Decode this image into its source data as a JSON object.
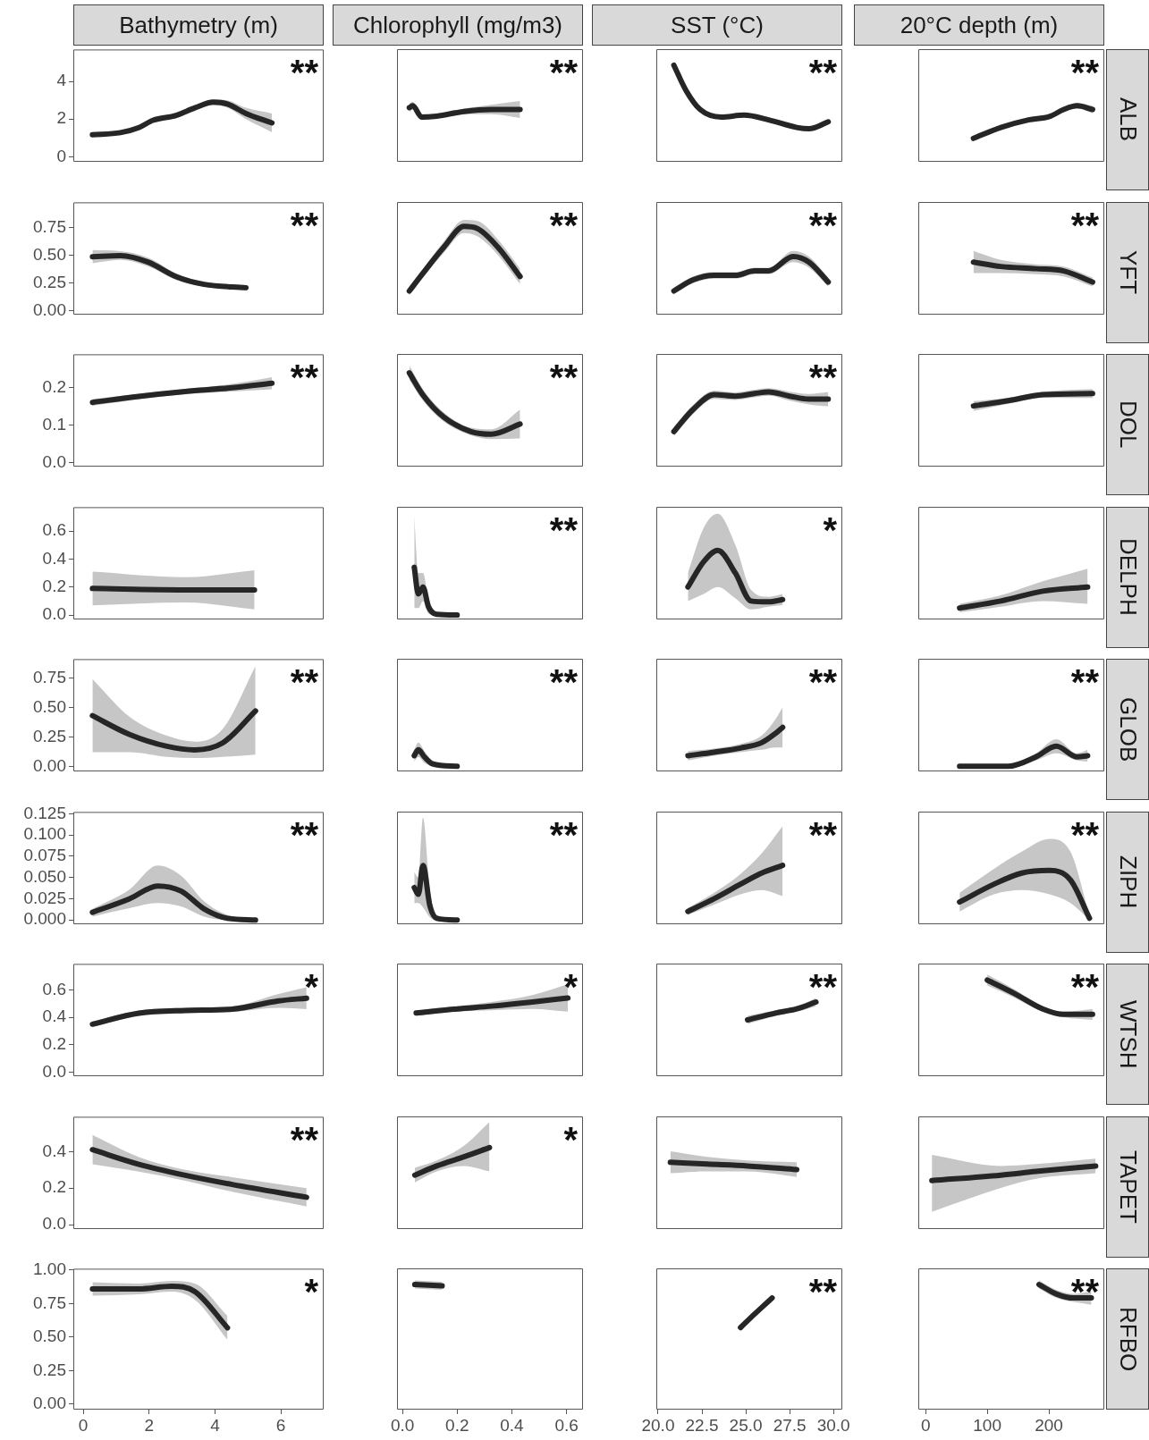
{
  "chart_data": [
    {
      "type": "line",
      "title": "Bathymetry (m)",
      "x": [
        0.28,
        1.13,
        1.69,
        2.12,
        2.82,
        3.39,
        3.95,
        4.38,
        4.94,
        5.73
      ],
      "series": [
        {
          "color": "#262626",
          "values": [
            1.17,
            1.28,
            1.55,
            1.94,
            2.2,
            2.6,
            2.9,
            2.8,
            2.3,
            1.8
          ],
          "lower": [
            1.07,
            1.18,
            1.45,
            1.84,
            2.1,
            2.5,
            2.75,
            2.6,
            2.0,
            1.3
          ],
          "upper": [
            1.27,
            1.38,
            1.65,
            2.04,
            2.3,
            2.7,
            3.05,
            3.0,
            2.6,
            2.3
          ]
        }
      ],
      "xlim": [
        -0.3,
        7.3
      ],
      "xticks": [
        0,
        2,
        4,
        6
      ],
      "ylim": [
        -0.27,
        5.7
      ],
      "yticks": [
        0,
        2,
        4
      ],
      "tick_labels": "y",
      "annotations": [
        "**"
      ]
    },
    {
      "type": "line",
      "title": "Chlorophyll (mg/m3)",
      "x": [
        0.025,
        0.0375,
        0.07,
        0.125,
        0.225,
        0.325,
        0.43
      ],
      "series": [
        {
          "color": "#262626",
          "values": [
            2.6,
            2.7,
            2.1,
            2.15,
            2.4,
            2.5,
            2.5
          ],
          "lower": [
            2.35,
            2.5,
            1.95,
            2.05,
            2.25,
            2.25,
            2.05
          ],
          "upper": [
            2.85,
            2.9,
            2.25,
            2.25,
            2.55,
            2.75,
            2.95
          ]
        }
      ],
      "xlim": [
        -0.02,
        0.66
      ],
      "xticks": [
        0,
        0.2,
        0.4,
        0.6
      ],
      "ylim": [
        -0.27,
        5.7
      ],
      "yticks": [
        0,
        2,
        4
      ],
      "tick_labels": false,
      "annotations": [
        "**"
      ]
    },
    {
      "type": "line",
      "title": "SST (°C)",
      "x": [
        20.9,
        21.6,
        22.4,
        23.6,
        24.9,
        26.3,
        27.9,
        28.6,
        29.7
      ],
      "series": [
        {
          "color": "#262626",
          "values": [
            4.85,
            3.5,
            2.5,
            2.1,
            2.2,
            1.95,
            1.55,
            1.48,
            1.85
          ],
          "lower": [
            4.7,
            3.4,
            2.4,
            2.0,
            2.1,
            1.85,
            1.45,
            1.38,
            1.7
          ],
          "upper": [
            5.0,
            3.6,
            2.6,
            2.2,
            2.3,
            2.05,
            1.65,
            1.58,
            2.0
          ]
        }
      ],
      "xlim": [
        19.9,
        30.5
      ],
      "xticks": [
        20,
        22.5,
        25,
        27.5,
        30
      ],
      "ylim": [
        -0.27,
        5.7
      ],
      "yticks": [
        0,
        2,
        4
      ],
      "tick_labels": false,
      "annotations": [
        "**"
      ]
    },
    {
      "type": "line",
      "title": "20°C depth (m)",
      "subtitle": "ALB",
      "x": [
        77.5,
        122,
        167,
        201,
        224,
        246,
        271
      ],
      "series": [
        {
          "color": "#262626",
          "values": [
            0.97,
            1.55,
            1.95,
            2.13,
            2.5,
            2.7,
            2.5
          ],
          "lower": [
            0.87,
            1.45,
            1.85,
            2.03,
            2.4,
            2.55,
            2.3
          ],
          "upper": [
            1.07,
            1.65,
            2.05,
            2.23,
            2.6,
            2.85,
            2.7
          ]
        }
      ],
      "xlim": [
        -12,
        290
      ],
      "xticks": [
        0,
        100,
        200
      ],
      "ylim": [
        -0.27,
        5.7
      ],
      "yticks": [
        0,
        2,
        4
      ],
      "tick_labels": false,
      "annotations": [
        "**"
      ]
    },
    {
      "type": "line",
      "x": [
        0.28,
        1.13,
        1.98,
        2.82,
        3.67,
        4.94
      ],
      "series": [
        {
          "color": "#262626",
          "values": [
            0.49,
            0.5,
            0.44,
            0.31,
            0.24,
            0.21
          ],
          "lower": [
            0.43,
            0.46,
            0.4,
            0.28,
            0.22,
            0.19
          ],
          "upper": [
            0.55,
            0.54,
            0.48,
            0.34,
            0.26,
            0.23
          ]
        }
      ],
      "xlim": [
        -0.3,
        7.3
      ],
      "xticks": [
        0,
        2,
        4,
        6
      ],
      "ylim": [
        -0.033,
        0.98
      ],
      "yticks": [
        {
          "value": 0,
          "label": "0.00"
        },
        0.25,
        {
          "value": 0.5,
          "label": "0.50"
        },
        0.75
      ],
      "tick_labels": "y",
      "annotations": [
        "**"
      ]
    },
    {
      "type": "line",
      "x": [
        0.025,
        0.075,
        0.15,
        0.225,
        0.275,
        0.35,
        0.43
      ],
      "series": [
        {
          "color": "#262626",
          "values": [
            0.18,
            0.34,
            0.57,
            0.76,
            0.74,
            0.57,
            0.31
          ],
          "lower": [
            0.14,
            0.3,
            0.52,
            0.7,
            0.67,
            0.5,
            0.24
          ],
          "upper": [
            0.22,
            0.38,
            0.62,
            0.82,
            0.81,
            0.64,
            0.38
          ]
        }
      ],
      "xlim": [
        -0.02,
        0.66
      ],
      "xticks": [
        0,
        0.2,
        0.4,
        0.6
      ],
      "ylim": [
        -0.033,
        0.98
      ],
      "yticks": [
        0,
        0.25,
        0.5,
        0.75
      ],
      "tick_labels": false,
      "annotations": [
        "**"
      ]
    },
    {
      "type": "line",
      "x": [
        20.9,
        22.0,
        23.2,
        24.4,
        25.5,
        26.3,
        27.7,
        28.6,
        29.7
      ],
      "series": [
        {
          "color": "#262626",
          "values": [
            0.18,
            0.28,
            0.32,
            0.32,
            0.36,
            0.36,
            0.49,
            0.44,
            0.26
          ],
          "lower": [
            0.15,
            0.25,
            0.29,
            0.29,
            0.33,
            0.33,
            0.44,
            0.39,
            0.22
          ],
          "upper": [
            0.21,
            0.31,
            0.35,
            0.35,
            0.39,
            0.39,
            0.54,
            0.49,
            0.3
          ]
        }
      ],
      "xlim": [
        19.9,
        30.5
      ],
      "xticks": [
        20,
        22.5,
        25,
        27.5,
        30
      ],
      "ylim": [
        -0.033,
        0.98
      ],
      "yticks": [
        0,
        0.25,
        0.5,
        0.75
      ],
      "tick_labels": false,
      "annotations": [
        "**"
      ]
    },
    {
      "type": "line",
      "subtitle": "YFT",
      "x": [
        77.5,
        122,
        179,
        224,
        271
      ],
      "series": [
        {
          "color": "#262626",
          "values": [
            0.44,
            0.4,
            0.38,
            0.36,
            0.26
          ],
          "lower": [
            0.34,
            0.34,
            0.33,
            0.31,
            0.22
          ],
          "upper": [
            0.54,
            0.46,
            0.42,
            0.4,
            0.3
          ]
        }
      ],
      "xlim": [
        -12,
        290
      ],
      "xticks": [
        0,
        100,
        200
      ],
      "ylim": [
        -0.033,
        0.98
      ],
      "yticks": [
        0,
        0.25,
        0.5,
        0.75
      ],
      "tick_labels": false,
      "annotations": [
        "**"
      ]
    },
    {
      "type": "line",
      "x": [
        0.28,
        1.69,
        3.1,
        4.52,
        5.73
      ],
      "series": [
        {
          "color": "#262626",
          "values": [
            0.161,
            0.177,
            0.19,
            0.2,
            0.212
          ],
          "lower": [
            0.152,
            0.17,
            0.183,
            0.19,
            0.196
          ],
          "upper": [
            0.17,
            0.184,
            0.197,
            0.21,
            0.228
          ]
        }
      ],
      "xlim": [
        -0.3,
        7.3
      ],
      "xticks": [
        0,
        2,
        4,
        6
      ],
      "ylim": [
        -0.01,
        0.289
      ],
      "yticks": [
        {
          "value": 0,
          "label": "0.0"
        },
        0.1,
        0.2
      ],
      "tick_labels": "y",
      "annotations": [
        "**"
      ]
    },
    {
      "type": "line",
      "x": [
        0.025,
        0.075,
        0.15,
        0.25,
        0.325,
        0.43
      ],
      "series": [
        {
          "color": "#262626",
          "values": [
            0.239,
            0.18,
            0.122,
            0.083,
            0.076,
            0.103
          ],
          "lower": [
            0.22,
            0.165,
            0.11,
            0.073,
            0.063,
            0.065
          ],
          "upper": [
            0.258,
            0.195,
            0.134,
            0.093,
            0.089,
            0.141
          ]
        }
      ],
      "xlim": [
        -0.02,
        0.66
      ],
      "xticks": [
        0,
        0.2,
        0.4,
        0.6
      ],
      "ylim": [
        -0.01,
        0.289
      ],
      "yticks": [
        0,
        0.1,
        0.2
      ],
      "tick_labels": false,
      "annotations": [
        "**"
      ]
    },
    {
      "type": "line",
      "x": [
        20.9,
        22.0,
        23.2,
        24.4,
        25.5,
        26.3,
        27.5,
        28.6,
        29.7
      ],
      "series": [
        {
          "color": "#262626",
          "values": [
            0.083,
            0.142,
            0.181,
            0.177,
            0.184,
            0.188,
            0.177,
            0.169,
            0.169
          ],
          "lower": [
            0.07,
            0.13,
            0.17,
            0.167,
            0.174,
            0.178,
            0.165,
            0.155,
            0.15
          ],
          "upper": [
            0.096,
            0.154,
            0.192,
            0.187,
            0.194,
            0.198,
            0.189,
            0.183,
            0.188
          ]
        }
      ],
      "xlim": [
        19.9,
        30.5
      ],
      "xticks": [
        20,
        22.5,
        25,
        27.5,
        30
      ],
      "ylim": [
        -0.01,
        0.289
      ],
      "yticks": [
        0,
        0.1,
        0.2
      ],
      "tick_labels": false,
      "annotations": [
        "**"
      ]
    },
    {
      "type": "line",
      "subtitle": "DOL",
      "x": [
        77.5,
        134,
        190,
        271
      ],
      "series": [
        {
          "color": "#262626",
          "values": [
            0.151,
            0.165,
            0.181,
            0.184
          ],
          "lower": [
            0.138,
            0.157,
            0.173,
            0.172
          ],
          "upper": [
            0.164,
            0.173,
            0.189,
            0.196
          ]
        }
      ],
      "xlim": [
        -12,
        290
      ],
      "xticks": [
        0,
        100,
        200
      ],
      "ylim": [
        -0.01,
        0.289
      ],
      "yticks": [
        0,
        0.1,
        0.2
      ],
      "tick_labels": false
    },
    {
      "type": "line",
      "x": [
        0.28,
        3.1,
        5.2
      ],
      "series": [
        {
          "color": "#262626",
          "values": [
            0.19,
            0.18,
            0.18
          ],
          "lower": [
            0.07,
            0.09,
            0.04
          ],
          "upper": [
            0.31,
            0.27,
            0.32
          ]
        }
      ],
      "xlim": [
        -0.3,
        7.3
      ],
      "xticks": [
        0,
        2,
        4,
        6
      ],
      "ylim": [
        -0.031,
        0.77
      ],
      "yticks": [
        {
          "value": 0,
          "label": "0.0"
        },
        0.2,
        0.4,
        0.6
      ],
      "tick_labels": "y"
    },
    {
      "type": "line",
      "x": [
        0.043,
        0.058,
        0.075,
        0.095,
        0.125,
        0.2
      ],
      "series": [
        {
          "color": "#262626",
          "values": [
            0.34,
            0.15,
            0.2,
            0.06,
            0.005,
            0
          ],
          "lower": [
            0.05,
            0.05,
            0.1,
            0.01,
            0,
            0
          ],
          "upper": [
            0.7,
            0.3,
            0.3,
            0.12,
            0.02,
            0.005
          ]
        }
      ],
      "xlim": [
        -0.02,
        0.66
      ],
      "xticks": [
        0,
        0.2,
        0.4,
        0.6
      ],
      "ylim": [
        -0.031,
        0.77
      ],
      "yticks": [
        0,
        0.2,
        0.4,
        0.6
      ],
      "tick_labels": false,
      "annotations": [
        "**"
      ]
    },
    {
      "type": "line",
      "x": [
        21.7,
        22.6,
        23.4,
        24.4,
        25.3,
        26.3,
        27.1
      ],
      "series": [
        {
          "color": "#262626",
          "values": [
            0.2,
            0.38,
            0.46,
            0.3,
            0.1,
            0.094,
            0.11
          ],
          "lower": [
            0.1,
            0.15,
            0.2,
            0.12,
            0.04,
            0.06,
            0.07
          ],
          "upper": [
            0.3,
            0.62,
            0.72,
            0.5,
            0.18,
            0.13,
            0.15
          ]
        }
      ],
      "xlim": [
        19.9,
        30.5
      ],
      "xticks": [
        20,
        22.5,
        25,
        27.5,
        30
      ],
      "ylim": [
        -0.031,
        0.77
      ],
      "yticks": [
        0,
        0.2,
        0.4,
        0.6
      ],
      "tick_labels": false,
      "annotations": [
        "*"
      ]
    },
    {
      "type": "line",
      "subtitle": "DELPH",
      "x": [
        55,
        122,
        190,
        263
      ],
      "series": [
        {
          "color": "#262626",
          "values": [
            0.05,
            0.1,
            0.17,
            0.2
          ],
          "lower": [
            0.02,
            0.06,
            0.1,
            0.08
          ],
          "upper": [
            0.08,
            0.14,
            0.24,
            0.33
          ]
        }
      ],
      "xlim": [
        -12,
        290
      ],
      "xticks": [
        0,
        100,
        200
      ],
      "ylim": [
        -0.031,
        0.77
      ],
      "yticks": [
        0,
        0.2,
        0.4,
        0.6
      ],
      "tick_labels": false
    },
    {
      "type": "line",
      "x": [
        0.28,
        1.41,
        2.54,
        3.39,
        4.24,
        5.23
      ],
      "series": [
        {
          "color": "#262626",
          "values": [
            0.43,
            0.27,
            0.17,
            0.14,
            0.2,
            0.47
          ],
          "lower": [
            0.12,
            0.12,
            0.08,
            0.07,
            0.08,
            0.1
          ],
          "upper": [
            0.74,
            0.42,
            0.26,
            0.21,
            0.32,
            0.85
          ]
        }
      ],
      "xlim": [
        -0.3,
        7.3
      ],
      "xticks": [
        0,
        2,
        4,
        6
      ],
      "ylim": [
        -0.043,
        0.91
      ],
      "yticks": [
        {
          "value": 0,
          "label": "0.00"
        },
        0.25,
        {
          "value": 0.5,
          "label": "0.50"
        },
        0.75
      ],
      "tick_labels": "y",
      "annotations": [
        "**"
      ]
    },
    {
      "type": "line",
      "x": [
        0.043,
        0.058,
        0.08,
        0.11,
        0.2
      ],
      "series": [
        {
          "color": "#262626",
          "values": [
            0.09,
            0.14,
            0.08,
            0.02,
            0
          ],
          "lower": [
            0.04,
            0.08,
            0.03,
            0,
            0
          ],
          "upper": [
            0.14,
            0.2,
            0.13,
            0.05,
            0.01
          ]
        }
      ],
      "xlim": [
        -0.02,
        0.66
      ],
      "xticks": [
        0,
        0.2,
        0.4,
        0.6
      ],
      "ylim": [
        -0.043,
        0.91
      ],
      "yticks": [
        0,
        0.25,
        0.5,
        0.75
      ],
      "tick_labels": false,
      "annotations": [
        "**"
      ]
    },
    {
      "type": "line",
      "x": [
        21.7,
        23.2,
        24.7,
        25.9,
        26.7,
        27.1
      ],
      "series": [
        {
          "color": "#262626",
          "values": [
            0.09,
            0.12,
            0.155,
            0.2,
            0.28,
            0.33
          ],
          "lower": [
            0.05,
            0.09,
            0.12,
            0.14,
            0.16,
            0.16
          ],
          "upper": [
            0.13,
            0.15,
            0.19,
            0.26,
            0.4,
            0.5
          ]
        }
      ],
      "xlim": [
        19.9,
        30.5
      ],
      "xticks": [
        20,
        22.5,
        25,
        27.5,
        30
      ],
      "ylim": [
        -0.043,
        0.91
      ],
      "yticks": [
        0,
        0.25,
        0.5,
        0.75
      ],
      "tick_labels": false,
      "annotations": [
        "**"
      ]
    },
    {
      "type": "line",
      "subtitle": "GLOB",
      "x": [
        55,
        134,
        179,
        212,
        246,
        263
      ],
      "series": [
        {
          "color": "#262626",
          "values": [
            0,
            0,
            0.08,
            0.17,
            0.08,
            0.09
          ],
          "lower": [
            0,
            0,
            0.05,
            0.11,
            0.05,
            0.04
          ],
          "upper": [
            0.01,
            0.01,
            0.11,
            0.23,
            0.11,
            0.14
          ]
        }
      ],
      "xlim": [
        -12,
        290
      ],
      "xticks": [
        0,
        100,
        200
      ],
      "ylim": [
        -0.043,
        0.91
      ],
      "yticks": [
        0,
        0.25,
        0.5,
        0.75
      ],
      "tick_labels": false,
      "annotations": [
        "**"
      ]
    },
    {
      "type": "line",
      "x": [
        0.28,
        1.41,
        2.26,
        2.97,
        3.67,
        4.38,
        5.23
      ],
      "series": [
        {
          "color": "#262626",
          "values": [
            0.009,
            0.025,
            0.04,
            0.034,
            0.013,
            0.002,
            0
          ],
          "lower": [
            0.004,
            0.014,
            0.02,
            0.016,
            0.004,
            0,
            0
          ],
          "upper": [
            0.013,
            0.036,
            0.064,
            0.052,
            0.022,
            0.006,
            0.002
          ]
        }
      ],
      "xlim": [
        -0.3,
        7.3
      ],
      "xticks": [
        0,
        2,
        4,
        6
      ],
      "ylim": [
        -0.005,
        0.127
      ],
      "yticks": [
        {
          "value": 0,
          "label": "0.000"
        },
        {
          "value": 0.025,
          "label": "0.025"
        },
        {
          "value": 0.05,
          "label": "0.050"
        },
        {
          "value": 0.075,
          "label": "0.075"
        },
        {
          "value": 0.1,
          "label": "0.100"
        },
        {
          "value": 0.125,
          "label": "0.125"
        }
      ],
      "tick_labels": "y",
      "annotations": [
        "**"
      ]
    },
    {
      "type": "line",
      "x": [
        0.043,
        0.058,
        0.075,
        0.1,
        0.125,
        0.2
      ],
      "series": [
        {
          "color": "#262626",
          "values": [
            0.038,
            0.03,
            0.064,
            0.017,
            0.002,
            0
          ],
          "lower": [
            0.02,
            0.02,
            0.015,
            0.003,
            0,
            0
          ],
          "upper": [
            0.056,
            0.05,
            0.12,
            0.035,
            0.006,
            0.001
          ]
        }
      ],
      "xlim": [
        -0.02,
        0.66
      ],
      "xticks": [
        0,
        0.2,
        0.4,
        0.6
      ],
      "ylim": [
        -0.005,
        0.127
      ],
      "yticks": [
        0,
        0.025,
        0.05,
        0.075,
        0.1,
        0.125
      ],
      "tick_labels": false,
      "annotations": [
        "**"
      ]
    },
    {
      "type": "line",
      "x": [
        21.7,
        23.2,
        24.7,
        25.9,
        27.1
      ],
      "series": [
        {
          "color": "#262626",
          "values": [
            0.01,
            0.025,
            0.042,
            0.055,
            0.064
          ],
          "lower": [
            0.006,
            0.018,
            0.03,
            0.035,
            0.028
          ],
          "upper": [
            0.014,
            0.032,
            0.054,
            0.078,
            0.11
          ]
        }
      ],
      "xlim": [
        19.9,
        30.5
      ],
      "xticks": [
        20,
        22.5,
        25,
        27.5,
        30
      ],
      "ylim": [
        -0.005,
        0.127
      ],
      "yticks": [
        0,
        0.025,
        0.05,
        0.075,
        0.1,
        0.125
      ],
      "tick_labels": false,
      "annotations": [
        "**"
      ]
    },
    {
      "type": "line",
      "subtitle": "ZIPH",
      "x": [
        55,
        111,
        156,
        201,
        235,
        266
      ],
      "series": [
        {
          "color": "#262626",
          "values": [
            0.021,
            0.042,
            0.055,
            0.058,
            0.047,
            0.002
          ],
          "lower": [
            0.01,
            0.03,
            0.035,
            0.03,
            0.02,
            0
          ],
          "upper": [
            0.032,
            0.06,
            0.08,
            0.095,
            0.08,
            0.006
          ]
        }
      ],
      "xlim": [
        -12,
        290
      ],
      "xticks": [
        0,
        100,
        200
      ],
      "ylim": [
        -0.005,
        0.127
      ],
      "yticks": [
        0,
        0.025,
        0.05,
        0.075,
        0.1,
        0.125
      ],
      "tick_labels": false,
      "annotations": [
        "**"
      ]
    },
    {
      "type": "line",
      "x": [
        0.28,
        1.69,
        3.1,
        4.52,
        5.93,
        6.78
      ],
      "series": [
        {
          "color": "#262626",
          "values": [
            0.35,
            0.43,
            0.45,
            0.46,
            0.52,
            0.54
          ],
          "lower": [
            0.33,
            0.41,
            0.43,
            0.44,
            0.47,
            0.46
          ],
          "upper": [
            0.37,
            0.45,
            0.47,
            0.48,
            0.57,
            0.62
          ]
        }
      ],
      "xlim": [
        -0.3,
        7.3
      ],
      "xticks": [
        0,
        2,
        4,
        6
      ],
      "ylim": [
        -0.03,
        0.79
      ],
      "yticks": [
        {
          "value": 0,
          "label": "0.0"
        },
        0.2,
        0.4,
        0.6
      ],
      "tick_labels": "y",
      "annotations": [
        "*"
      ]
    },
    {
      "type": "line",
      "x": [
        0.05,
        0.2,
        0.325,
        0.475,
        0.605
      ],
      "series": [
        {
          "color": "#262626",
          "values": [
            0.43,
            0.46,
            0.48,
            0.51,
            0.54
          ],
          "lower": [
            0.41,
            0.44,
            0.45,
            0.46,
            0.44
          ],
          "upper": [
            0.45,
            0.48,
            0.51,
            0.56,
            0.64
          ]
        }
      ],
      "xlim": [
        -0.02,
        0.66
      ],
      "xticks": [
        0,
        0.2,
        0.4,
        0.6
      ],
      "ylim": [
        -0.03,
        0.79
      ],
      "yticks": [
        0,
        0.2,
        0.4,
        0.6
      ],
      "tick_labels": false,
      "annotations": [
        "*"
      ]
    },
    {
      "type": "line",
      "x": [
        25.1,
        26.7,
        27.9,
        29.0
      ],
      "series": [
        {
          "color": "#262626",
          "values": [
            0.38,
            0.43,
            0.46,
            0.51
          ],
          "lower": [
            0.35,
            0.41,
            0.44,
            0.48
          ],
          "upper": [
            0.41,
            0.45,
            0.48,
            0.54
          ]
        }
      ],
      "xlim": [
        19.9,
        30.5
      ],
      "xticks": [
        20,
        22.5,
        25,
        27.5,
        30
      ],
      "ylim": [
        -0.03,
        0.79
      ],
      "yticks": [
        0,
        0.2,
        0.4,
        0.6
      ],
      "tick_labels": false,
      "annotations": [
        "**"
      ]
    },
    {
      "type": "line",
      "subtitle": "WTSH",
      "x": [
        100,
        145,
        190,
        224,
        271
      ],
      "series": [
        {
          "color": "#262626",
          "values": [
            0.67,
            0.57,
            0.46,
            0.42,
            0.42
          ],
          "lower": [
            0.63,
            0.54,
            0.44,
            0.4,
            0.38
          ],
          "upper": [
            0.71,
            0.6,
            0.48,
            0.44,
            0.46
          ]
        }
      ],
      "xlim": [
        -12,
        290
      ],
      "xticks": [
        0,
        100,
        200
      ],
      "ylim": [
        -0.03,
        0.79
      ],
      "yticks": [
        0,
        0.2,
        0.4,
        0.6
      ],
      "tick_labels": false,
      "annotations": [
        "**"
      ]
    },
    {
      "type": "line",
      "x": [
        0.28,
        1.69,
        3.1,
        4.52,
        6.78
      ],
      "series": [
        {
          "color": "#262626",
          "values": [
            0.41,
            0.33,
            0.27,
            0.22,
            0.15
          ],
          "lower": [
            0.33,
            0.29,
            0.24,
            0.18,
            0.1
          ],
          "upper": [
            0.49,
            0.37,
            0.3,
            0.26,
            0.2
          ]
        }
      ],
      "xlim": [
        -0.3,
        7.3
      ],
      "xticks": [
        0,
        2,
        4,
        6
      ],
      "ylim": [
        -0.024,
        0.59
      ],
      "yticks": [
        {
          "value": 0,
          "label": "0.0"
        },
        0.2,
        0.4
      ],
      "tick_labels": "y",
      "annotations": [
        "**"
      ]
    },
    {
      "type": "line",
      "x": [
        0.045,
        0.125,
        0.225,
        0.318
      ],
      "series": [
        {
          "color": "#262626",
          "values": [
            0.27,
            0.32,
            0.37,
            0.42
          ],
          "lower": [
            0.23,
            0.29,
            0.32,
            0.29
          ],
          "upper": [
            0.31,
            0.35,
            0.43,
            0.56
          ]
        }
      ],
      "xlim": [
        -0.02,
        0.66
      ],
      "xticks": [
        0,
        0.2,
        0.4,
        0.6
      ],
      "ylim": [
        -0.024,
        0.59
      ],
      "yticks": [
        0,
        0.2,
        0.4
      ],
      "tick_labels": false,
      "annotations": [
        "*"
      ]
    },
    {
      "type": "line",
      "x": [
        20.7,
        22.8,
        25.1,
        27.9
      ],
      "series": [
        {
          "color": "#262626",
          "values": [
            0.34,
            0.33,
            0.32,
            0.3
          ],
          "lower": [
            0.28,
            0.29,
            0.29,
            0.26
          ],
          "upper": [
            0.4,
            0.37,
            0.35,
            0.34
          ]
        }
      ],
      "xlim": [
        19.9,
        30.5
      ],
      "xticks": [
        20,
        22.5,
        25,
        27.5,
        30
      ],
      "ylim": [
        -0.024,
        0.59
      ],
      "yticks": [
        0,
        0.2,
        0.4
      ],
      "tick_labels": false
    },
    {
      "type": "line",
      "subtitle": "TAPET",
      "x": [
        10,
        122,
        179,
        276
      ],
      "series": [
        {
          "color": "#262626",
          "values": [
            0.24,
            0.27,
            0.29,
            0.32
          ],
          "lower": [
            0.07,
            0.2,
            0.25,
            0.28
          ],
          "upper": [
            0.38,
            0.32,
            0.33,
            0.36
          ]
        }
      ],
      "xlim": [
        -12,
        290
      ],
      "xticks": [
        0,
        100,
        200
      ],
      "ylim": [
        -0.024,
        0.59
      ],
      "yticks": [
        0,
        0.2,
        0.4
      ],
      "tick_labels": false
    },
    {
      "type": "line",
      "x": [
        0.28,
        1.69,
        2.68,
        3.39,
        4.38
      ],
      "series": [
        {
          "color": "#262626",
          "values": [
            0.86,
            0.86,
            0.88,
            0.84,
            0.57
          ],
          "lower": [
            0.81,
            0.82,
            0.84,
            0.78,
            0.48
          ],
          "upper": [
            0.91,
            0.9,
            0.92,
            0.9,
            0.66
          ]
        }
      ],
      "xlim": [
        -0.3,
        7.3
      ],
      "xticks": [
        0,
        2,
        4,
        6
      ],
      "ylim": [
        -0.04,
        1.01
      ],
      "yticks": [
        {
          "value": 0,
          "label": "0.00"
        },
        0.25,
        {
          "value": 0.5,
          "label": "0.50"
        },
        0.75,
        {
          "value": 1,
          "label": "1.00"
        }
      ],
      "annotations": [
        "*"
      ]
    },
    {
      "type": "line",
      "x": [
        0.045,
        0.145
      ],
      "series": [
        {
          "color": "#262626",
          "values": [
            0.89,
            0.88
          ],
          "lower": [
            0.86,
            0.85
          ],
          "upper": [
            0.92,
            0.91
          ]
        }
      ],
      "xlim": [
        -0.02,
        0.66
      ],
      "xticks": [
        {
          "value": 0,
          "label": "0.0"
        },
        0.2,
        0.4,
        0.6
      ],
      "ylim": [
        -0.04,
        1.01
      ],
      "yticks": [
        0,
        0.25,
        0.5,
        0.75,
        1
      ],
      "tick_labels": "x"
    },
    {
      "type": "line",
      "x": [
        24.7,
        25.5,
        26.5
      ],
      "series": [
        {
          "color": "#262626",
          "values": [
            0.57,
            0.67,
            0.79
          ],
          "lower": [
            0.55,
            0.65,
            0.76
          ],
          "upper": [
            0.59,
            0.69,
            0.82
          ]
        }
      ],
      "xlim": [
        19.9,
        30.5
      ],
      "xticks": [
        {
          "value": 20,
          "label": "20.0"
        },
        22.5,
        {
          "value": 25,
          "label": "25.0"
        },
        27.5,
        {
          "value": 30,
          "label": "30.0"
        }
      ],
      "ylim": [
        -0.04,
        1.01
      ],
      "yticks": [
        0,
        0.25,
        0.5,
        0.75,
        1
      ],
      "tick_labels": "x",
      "annotations": [
        "**"
      ]
    },
    {
      "type": "line",
      "subtitle": "RFBO",
      "x": [
        184,
        212,
        240,
        269
      ],
      "series": [
        {
          "color": "#262626",
          "values": [
            0.89,
            0.82,
            0.79,
            0.79
          ],
          "lower": [
            0.86,
            0.79,
            0.76,
            0.74
          ],
          "upper": [
            0.92,
            0.85,
            0.82,
            0.84
          ]
        }
      ],
      "xlim": [
        -12,
        290
      ],
      "xticks": [
        0,
        100,
        200
      ],
      "ylim": [
        -0.04,
        1.01
      ],
      "yticks": [
        0,
        0.25,
        0.5,
        0.75,
        1
      ],
      "tick_labels": "x",
      "annotations": [
        "**"
      ]
    }
  ]
}
